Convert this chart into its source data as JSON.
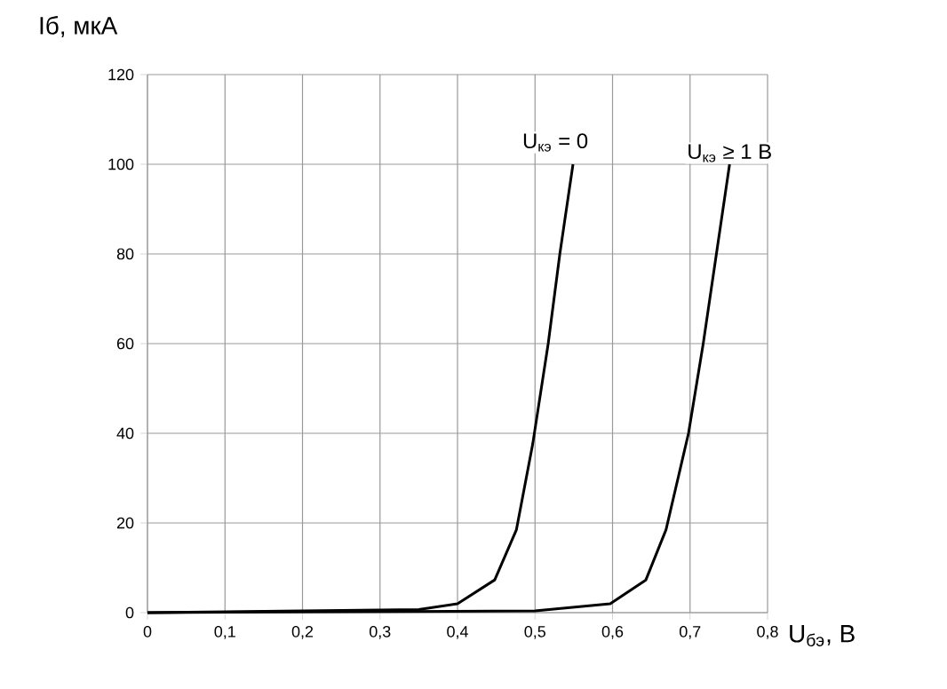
{
  "chart_data": {
    "type": "line",
    "xlabel": "U$_{бэ}$, В",
    "ylabel": "Iб, мкА",
    "xlim": [
      0,
      0.8
    ],
    "ylim": [
      0,
      120
    ],
    "xticks": [
      0,
      {
        "value": 0.1,
        "label": "0,1"
      },
      {
        "value": 0.2,
        "label": "0,2"
      },
      {
        "value": 0.3,
        "label": "0,3"
      },
      {
        "value": 0.4,
        "label": "0,4"
      },
      {
        "value": 0.5,
        "label": "0,5"
      },
      {
        "value": 0.6,
        "label": "0,6"
      },
      {
        "value": 0.7,
        "label": "0,7"
      },
      {
        "value": 0.8,
        "label": "0,8"
      }
    ],
    "yticks": [
      0,
      20,
      40,
      60,
      80,
      100,
      120
    ],
    "grid": true,
    "marker": "none",
    "line_style": "solid",
    "series": [
      {
        "name": "U$_{кэ}$ = 0",
        "color": "#000000",
        "x": [
          0,
          0.35,
          0.4,
          0.448,
          0.476,
          0.497,
          0.517,
          0.532,
          0.549
        ],
        "values": [
          0,
          0.7,
          2,
          7.3,
          18.5,
          37.6,
          60,
          80,
          100
        ]
      },
      {
        "name": "U$_{кэ}$ ≥ 1 В",
        "color": "#000000",
        "x": [
          0,
          0.5,
          0.597,
          0.643,
          0.669,
          0.698,
          0.717,
          0.734,
          0.751
        ],
        "values": [
          0,
          0.4,
          2,
          7.3,
          18.5,
          40,
          60,
          80,
          100
        ]
      }
    ]
  }
}
